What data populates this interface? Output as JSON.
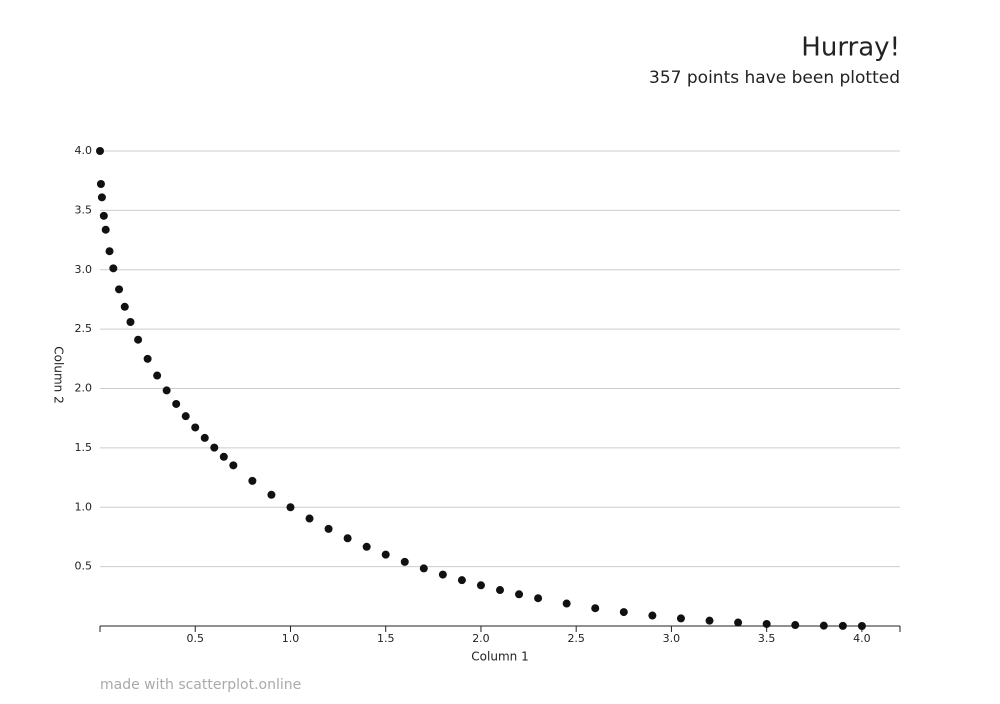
{
  "chart_data": {
    "type": "scatter",
    "title": "Hurray!",
    "subtitle": "357 points have been plotted",
    "x_label": "Column 1",
    "y_label": "Column 2",
    "footer": "made with scatterplot.online",
    "color": "#111111",
    "grid": true,
    "xlim": [
      0,
      4.2
    ],
    "ylim": [
      0,
      4.0
    ],
    "xticks": [
      0.5,
      {
        "value": 1,
        "label": "1.0"
      },
      1.5,
      {
        "value": 2,
        "label": "2.0"
      },
      2.5,
      {
        "value": 3,
        "label": "3.0"
      },
      3.5,
      {
        "value": 4,
        "label": "4.0"
      }
    ],
    "yticks": [
      0.5,
      {
        "value": 1,
        "label": "1.0"
      },
      1.5,
      {
        "value": 2,
        "label": "2.0"
      },
      2.5,
      {
        "value": 3,
        "label": "3.0"
      },
      3.5,
      {
        "value": 4,
        "label": "4.0"
      }
    ],
    "x": [
      0,
      0.005,
      0.01,
      0.02,
      0.03,
      0.05,
      0.07,
      0.1,
      0.13,
      0.16,
      0.2,
      0.25,
      0.3,
      0.35,
      0.4,
      0.45,
      0.5,
      0.55,
      0.6,
      0.65,
      0.7,
      0.8,
      0.9,
      1.0,
      1.1,
      1.2,
      1.3,
      1.4,
      1.5,
      1.6,
      1.7,
      1.8,
      1.9,
      2.0,
      2.1,
      2.2,
      2.3,
      2.45,
      2.6,
      2.75,
      2.9,
      3.05,
      3.2,
      3.35,
      3.5,
      3.65,
      3.8,
      3.9,
      4.0
    ],
    "values": [
      4,
      3.722,
      3.61,
      3.454,
      3.337,
      3.156,
      3.012,
      2.835,
      2.688,
      2.56,
      2.411,
      2.25,
      2.109,
      1.984,
      1.87,
      1.767,
      1.672,
      1.584,
      1.502,
      1.425,
      1.353,
      1.222,
      1.105,
      1,
      0.905,
      0.818,
      0.739,
      0.667,
      0.601,
      0.54,
      0.485,
      0.433,
      0.386,
      0.343,
      0.303,
      0.267,
      0.234,
      0.189,
      0.15,
      0.117,
      0.088,
      0.064,
      0.045,
      0.029,
      0.017,
      0.008,
      0.003,
      0.001,
      0
    ]
  }
}
